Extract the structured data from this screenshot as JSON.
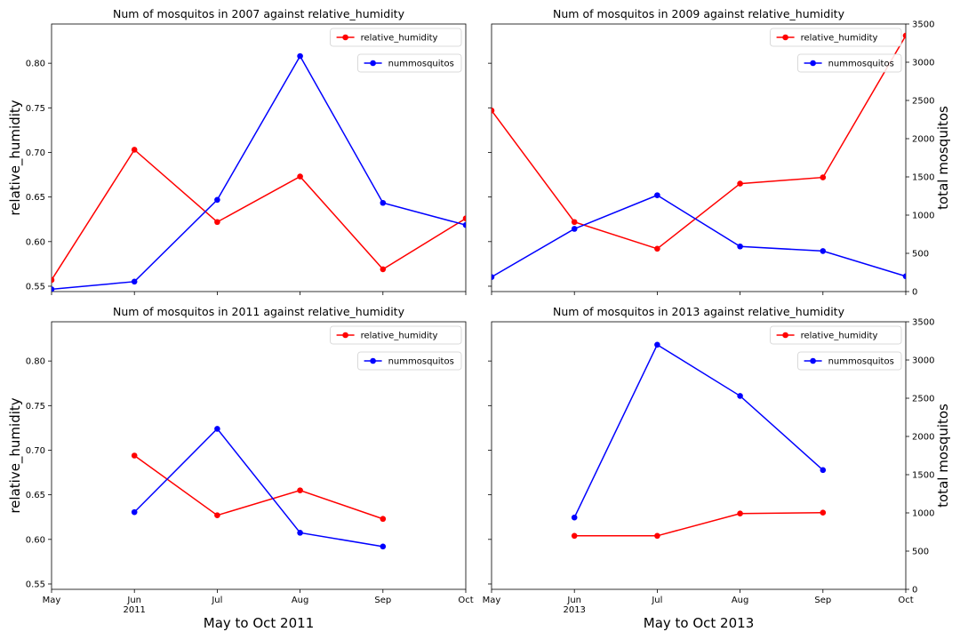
{
  "chart_data": [
    {
      "type": "line",
      "title": "Num of mosquitos in 2007 against relative_humidity",
      "xlabel": "",
      "ylabel_left": "relative_humidity",
      "ylabel_right": "",
      "x_ticks": [
        "May",
        "Jun",
        "Jul",
        "Aug",
        "Sep",
        "Oct"
      ],
      "x_year_label": "",
      "ylim_left": [
        0.544,
        0.844
      ],
      "ylim_right": [
        0,
        3500
      ],
      "y_ticks_left": [
        "0.55",
        "0.60",
        "0.65",
        "0.70",
        "0.75",
        "0.80"
      ],
      "y_ticks_right": [],
      "grid": false,
      "series": [
        {
          "name": "relative_humidity",
          "axis": "left",
          "color": "#ff0000",
          "x": [
            "May",
            "Jun",
            "Jul",
            "Aug",
            "Sep",
            "Oct"
          ],
          "values": [
            0.557,
            0.703,
            0.622,
            0.673,
            0.569,
            0.626
          ]
        },
        {
          "name": "nummosquitos",
          "axis": "right",
          "color": "#0000ff",
          "x": [
            "May",
            "Jun",
            "Jul",
            "Aug",
            "Sep",
            "Oct"
          ],
          "values": [
            30,
            130,
            1200,
            3080,
            1160,
            870
          ]
        }
      ]
    },
    {
      "type": "line",
      "title": "Num of mosquitos in 2009 against relative_humidity",
      "xlabel": "",
      "ylabel_left": "",
      "ylabel_right": "total mosquitos",
      "x_ticks": [
        "May",
        "Jun",
        "Jul",
        "Aug",
        "Sep",
        "Oct"
      ],
      "x_year_label": "",
      "ylim_left": [
        0.544,
        0.844
      ],
      "ylim_right": [
        0,
        3500
      ],
      "y_ticks_left": [],
      "y_ticks_right": [
        "0",
        "500",
        "1000",
        "1500",
        "2000",
        "2500",
        "3000",
        "3500"
      ],
      "grid": false,
      "series": [
        {
          "name": "relative_humidity",
          "axis": "left",
          "color": "#ff0000",
          "x": [
            "May",
            "Jun",
            "Jul",
            "Aug",
            "Sep",
            "Oct"
          ],
          "values": [
            0.747,
            0.622,
            0.592,
            0.665,
            0.672,
            0.831
          ]
        },
        {
          "name": "nummosquitos",
          "axis": "right",
          "color": "#0000ff",
          "x": [
            "May",
            "Jun",
            "Jul",
            "Aug",
            "Sep",
            "Oct"
          ],
          "values": [
            190,
            820,
            1260,
            590,
            530,
            200
          ]
        }
      ]
    },
    {
      "type": "line",
      "title": "Num of mosquitos in 2011 against relative_humidity",
      "xlabel": "May to Oct 2011",
      "ylabel_left": "relative_humidity",
      "ylabel_right": "",
      "x_ticks": [
        "May",
        "Jun",
        "Jul",
        "Aug",
        "Sep",
        "Oct"
      ],
      "x_year_label": "2011",
      "ylim_left": [
        0.544,
        0.844
      ],
      "ylim_right": [
        0,
        3500
      ],
      "y_ticks_left": [
        "0.55",
        "0.60",
        "0.65",
        "0.70",
        "0.75",
        "0.80"
      ],
      "y_ticks_right": [],
      "grid": false,
      "series": [
        {
          "name": "relative_humidity",
          "axis": "left",
          "color": "#ff0000",
          "x": [
            "Jun",
            "Jul",
            "Aug",
            "Sep"
          ],
          "values": [
            0.694,
            0.627,
            0.655,
            0.623
          ]
        },
        {
          "name": "nummosquitos",
          "axis": "right",
          "color": "#0000ff",
          "x": [
            "Jun",
            "Jul",
            "Aug",
            "Sep"
          ],
          "values": [
            1010,
            2100,
            740,
            560
          ]
        }
      ]
    },
    {
      "type": "line",
      "title": "Num of mosquitos in 2013 against relative_humidity",
      "xlabel": "May to Oct 2013",
      "ylabel_left": "",
      "ylabel_right": "total mosquitos",
      "x_ticks": [
        "May",
        "Jun",
        "Jul",
        "Aug",
        "Sep",
        "Oct"
      ],
      "x_year_label": "2013",
      "ylim_left": [
        0.544,
        0.844
      ],
      "ylim_right": [
        0,
        3500
      ],
      "y_ticks_left": [],
      "y_ticks_right": [
        "0",
        "500",
        "1000",
        "1500",
        "2000",
        "2500",
        "3000",
        "3500"
      ],
      "grid": false,
      "series": [
        {
          "name": "relative_humidity",
          "axis": "left",
          "color": "#ff0000",
          "x": [
            "Jun",
            "Jul",
            "Aug",
            "Sep"
          ],
          "values": [
            0.604,
            0.604,
            0.629,
            0.63
          ]
        },
        {
          "name": "nummosquitos",
          "axis": "right",
          "color": "#0000ff",
          "x": [
            "Jun",
            "Jul",
            "Aug",
            "Sep"
          ],
          "values": [
            940,
            3200,
            2530,
            1560
          ]
        }
      ]
    }
  ]
}
